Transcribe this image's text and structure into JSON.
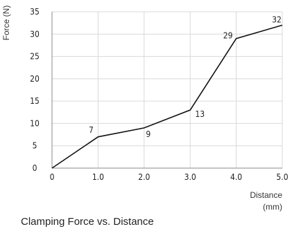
{
  "chart_data": {
    "type": "line",
    "title": "Clamping Force vs. Distance",
    "xlabel": "Distance (mm)",
    "ylabel": "Force (N)",
    "x": [
      0,
      1.0,
      2.0,
      3.0,
      4.0,
      5.0
    ],
    "x_tick_labels": [
      "0",
      "1.0",
      "2.0",
      "3.0",
      "4.0",
      "5.0"
    ],
    "y_ticks": [
      0,
      5,
      10,
      15,
      20,
      25,
      30,
      35
    ],
    "xlim": [
      0,
      5
    ],
    "ylim": [
      0,
      35
    ],
    "grid": true,
    "series": [
      {
        "values": [
          0,
          7,
          9,
          13,
          29,
          32
        ],
        "labels": [
          "",
          "7",
          "9",
          "13",
          "29",
          "32"
        ],
        "color": "#111111"
      }
    ]
  }
}
